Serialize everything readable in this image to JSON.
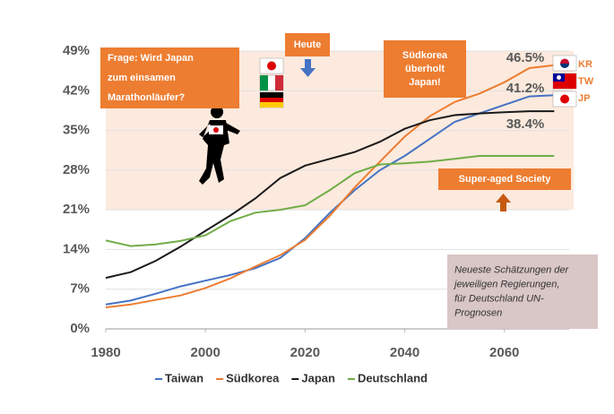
{
  "chart_data": {
    "type": "line",
    "x": [
      1980,
      1985,
      1990,
      1995,
      2000,
      2005,
      2010,
      2015,
      2020,
      2025,
      2030,
      2035,
      2040,
      2045,
      2050,
      2055,
      2060,
      2065,
      2070
    ],
    "series": [
      {
        "name": "Taiwan",
        "color": "#4472c4",
        "values": [
          4.3,
          5,
          6.2,
          7.5,
          8.5,
          9.5,
          10.7,
          12.5,
          16,
          20.5,
          24.5,
          28,
          30.5,
          33.5,
          36.5,
          38,
          39.5,
          41,
          41.2
        ],
        "value_labels": [
          null,
          null,
          null,
          null,
          null,
          null,
          null,
          null,
          null,
          null,
          null,
          null,
          null,
          null,
          null,
          null,
          null,
          null,
          "41.2%"
        ]
      },
      {
        "name": "Südkorea",
        "color": "#ed7d31",
        "values": [
          3.8,
          4.3,
          5.1,
          5.9,
          7.2,
          8.9,
          11,
          13,
          15.7,
          20,
          25,
          29.5,
          33.9,
          37.5,
          40,
          41.5,
          43.5,
          46,
          46.5
        ],
        "value_labels": [
          null,
          null,
          null,
          null,
          null,
          null,
          null,
          null,
          null,
          null,
          null,
          null,
          null,
          null,
          null,
          null,
          null,
          null,
          "46.5%"
        ]
      },
      {
        "name": "Japan",
        "color": "#1a1a1a",
        "values": [
          9,
          10,
          12,
          14.5,
          17.3,
          20,
          23,
          26.6,
          28.8,
          30,
          31.2,
          33,
          35.3,
          36.8,
          37.7,
          38,
          38.2,
          38.4,
          38.4
        ],
        "value_labels": [
          null,
          null,
          null,
          null,
          null,
          null,
          null,
          null,
          null,
          null,
          null,
          null,
          null,
          null,
          null,
          null,
          null,
          null,
          "38.4%"
        ]
      },
      {
        "name": "Deutschland",
        "color": "#70ad47",
        "values": [
          15.6,
          14.6,
          14.9,
          15.5,
          16.5,
          19,
          20.5,
          21,
          21.8,
          24.5,
          27.5,
          29,
          29.2,
          29.5,
          30,
          30.5,
          30.5,
          30.5,
          30.5
        ]
      }
    ],
    "xlim": [
      1980,
      2073
    ],
    "xticks": [
      1980,
      2000,
      2020,
      2040,
      2060
    ],
    "ylim": [
      0,
      49
    ],
    "yticks": [
      {
        "value": 0,
        "label": "0%"
      },
      {
        "value": 7,
        "label": "7%"
      },
      {
        "value": 14,
        "label": "14%"
      },
      {
        "value": 21,
        "label": "21%"
      },
      {
        "value": 28,
        "label": "28%"
      },
      {
        "value": 35,
        "label": "35%"
      },
      {
        "value": 42,
        "label": "42%"
      },
      {
        "value": 49,
        "label": "49%"
      }
    ],
    "grid": true,
    "shaded_band": [
      21,
      49
    ],
    "annotations": [
      {
        "lines": [
          "Frage: Wird Japan",
          "zum einsamen",
          "Marathonläufer?"
        ]
      },
      {
        "lines": [
          "Heute"
        ]
      },
      {
        "lines": [
          "Südkorea",
          "überholt",
          "Japan!"
        ]
      },
      {
        "lines": [
          "Super-aged Society"
        ]
      },
      {
        "lines": [
          "Neueste Schätzungen der",
          "jeweiligen Regierungen,",
          "für Deutschland UN-",
          "Prognosen"
        ]
      }
    ],
    "flag_labels": [
      "KR",
      "TW",
      "JP"
    ]
  }
}
